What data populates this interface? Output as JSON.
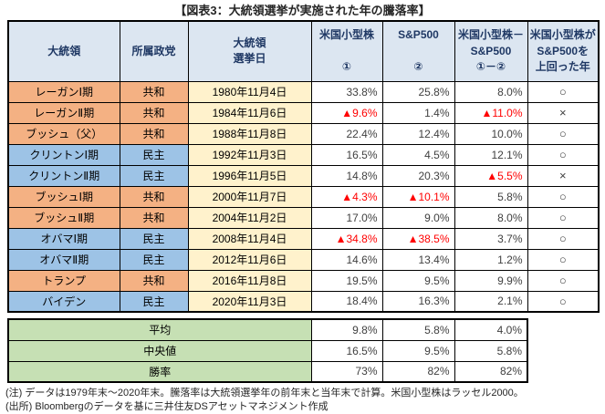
{
  "title": "【図表3：大統領選挙が実施された年の騰落率】",
  "table": {
    "headers": [
      "大統領",
      "所属政党",
      "大統領\n選挙日",
      "米国小型株\n\n①",
      "S&P500\n\n②",
      "米国小型株－\nS&P500\n①－②",
      "米国小型株が\nS&P500を\n上回った年"
    ],
    "rows": [
      {
        "president": "レーガンⅠ期",
        "party": "共和",
        "party_color": "rep",
        "date": "1980年11月4日",
        "small_cap": "33.8%",
        "sp500": "25.8%",
        "diff": "8.0%",
        "result": "○"
      },
      {
        "president": "レーガンⅡ期",
        "party": "共和",
        "party_color": "rep",
        "date": "1984年11月6日",
        "small_cap": "▲9.6%",
        "sp500": "1.4%",
        "diff": "▲11.0%",
        "result": "×"
      },
      {
        "president": "ブッシュ（父）",
        "party": "共和",
        "party_color": "rep",
        "date": "1988年11月8日",
        "small_cap": "22.4%",
        "sp500": "12.4%",
        "diff": "10.0%",
        "result": "○"
      },
      {
        "president": "クリントンⅠ期",
        "party": "民主",
        "party_color": "dem",
        "date": "1992年11月3日",
        "small_cap": "16.5%",
        "sp500": "4.5%",
        "diff": "12.1%",
        "result": "○"
      },
      {
        "president": "クリントンⅡ期",
        "party": "民主",
        "party_color": "dem",
        "date": "1996年11月5日",
        "small_cap": "14.8%",
        "sp500": "20.3%",
        "diff": "▲5.5%",
        "result": "×"
      },
      {
        "president": "ブッシュⅠ期",
        "party": "共和",
        "party_color": "rep",
        "date": "2000年11月7日",
        "small_cap": "▲4.3%",
        "sp500": "▲10.1%",
        "diff": "5.8%",
        "result": "○"
      },
      {
        "president": "ブッシュⅡ期",
        "party": "共和",
        "party_color": "rep",
        "date": "2004年11月2日",
        "small_cap": "17.0%",
        "sp500": "9.0%",
        "diff": "8.0%",
        "result": "○"
      },
      {
        "president": "オバマⅠ期",
        "party": "民主",
        "party_color": "dem",
        "date": "2008年11月4日",
        "small_cap": "▲34.8%",
        "sp500": "▲38.5%",
        "diff": "3.7%",
        "result": "○"
      },
      {
        "president": "オバマⅡ期",
        "party": "民主",
        "party_color": "dem",
        "date": "2012年11月6日",
        "small_cap": "14.6%",
        "sp500": "13.4%",
        "diff": "1.2%",
        "result": "○"
      },
      {
        "president": "トランプ",
        "party": "共和",
        "party_color": "rep",
        "date": "2016年11月8日",
        "small_cap": "19.5%",
        "sp500": "9.5%",
        "diff": "9.9%",
        "result": "○"
      },
      {
        "president": "バイデン",
        "party": "民主",
        "party_color": "dem",
        "date": "2020年11月3日",
        "small_cap": "18.4%",
        "sp500": "16.3%",
        "diff": "2.1%",
        "result": "○"
      }
    ]
  },
  "summary": {
    "rows": [
      {
        "label": "平均",
        "small_cap": "9.8%",
        "sp500": "5.8%",
        "diff": "4.0%"
      },
      {
        "label": "中央値",
        "small_cap": "16.5%",
        "sp500": "9.5%",
        "diff": "5.8%"
      },
      {
        "label": "勝率",
        "small_cap": "73%",
        "sp500": "82%",
        "diff": "82%"
      }
    ]
  },
  "notes": [
    "(注) データは1979年末～2020年末。騰落率は大統領選挙年の前年末と当年末で計算。米国小型株はラッセル2000。",
    "(出所) Bloombergのデータを基に三井住友DSアセットマネジメント作成"
  ],
  "colors": {
    "header_bg": "#DCE6F1",
    "header_text": "#1F3864",
    "republican_bg": "#F4B183",
    "democrat_bg": "#9DC3E6",
    "date_bg": "#FFF2CC",
    "summary_bg": "#C6E0B4",
    "negative_text": "#FF0000"
  },
  "chart_data": {
    "type": "table",
    "title": "大統領選挙が実施された年の騰落率",
    "columns": [
      "大統領",
      "所属政党",
      "大統領選挙日",
      "米国小型株 ①",
      "S&P500 ②",
      "米国小型株－S&P500 ①－②",
      "米国小型株がS&P500を上回った年"
    ],
    "rows": [
      [
        "レーガンⅠ期",
        "共和",
        "1980年11月4日",
        33.8,
        25.8,
        8.0,
        "○"
      ],
      [
        "レーガンⅡ期",
        "共和",
        "1984年11月6日",
        -9.6,
        1.4,
        -11.0,
        "×"
      ],
      [
        "ブッシュ（父）",
        "共和",
        "1988年11月8日",
        22.4,
        12.4,
        10.0,
        "○"
      ],
      [
        "クリントンⅠ期",
        "民主",
        "1992年11月3日",
        16.5,
        4.5,
        12.1,
        "○"
      ],
      [
        "クリントンⅡ期",
        "民主",
        "1996年11月5日",
        14.8,
        20.3,
        -5.5,
        "×"
      ],
      [
        "ブッシュⅠ期",
        "共和",
        "2000年11月7日",
        -4.3,
        -10.1,
        5.8,
        "○"
      ],
      [
        "ブッシュⅡ期",
        "共和",
        "2004年11月2日",
        17.0,
        9.0,
        8.0,
        "○"
      ],
      [
        "オバマⅠ期",
        "民主",
        "2008年11月4日",
        -34.8,
        -38.5,
        3.7,
        "○"
      ],
      [
        "オバマⅡ期",
        "民主",
        "2012年11月6日",
        14.6,
        13.4,
        1.2,
        "○"
      ],
      [
        "トランプ",
        "共和",
        "2016年11月8日",
        19.5,
        9.5,
        9.9,
        "○"
      ],
      [
        "バイデン",
        "民主",
        "2020年11月3日",
        18.4,
        16.3,
        2.1,
        "○"
      ]
    ],
    "summary_rows": [
      [
        "平均",
        9.8,
        5.8,
        4.0
      ],
      [
        "中央値",
        16.5,
        9.5,
        5.8
      ],
      [
        "勝率",
        "73%",
        "82%",
        "82%"
      ]
    ]
  }
}
